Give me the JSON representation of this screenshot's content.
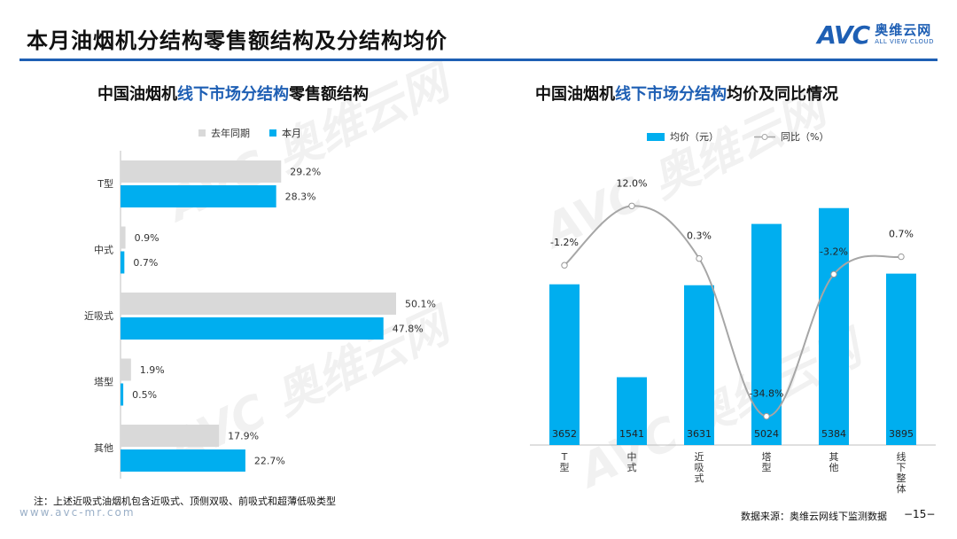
{
  "header": {
    "title": "本月油烟机分结构零售额结构及分结构均价",
    "logo_mark": "AVC",
    "logo_cn": "奥维云网",
    "logo_en": "ALL VIEW CLOUD"
  },
  "left_panel": {
    "title_prefix": "中国油烟机",
    "title_highlight": "线下市场分结构",
    "title_suffix": "零售额结构",
    "legend": [
      {
        "label": "去年同期",
        "color": "#d9d9d9"
      },
      {
        "label": "本月",
        "color": "#00aeef"
      }
    ]
  },
  "right_panel": {
    "title_prefix": "中国油烟机",
    "title_highlight": "线下市场分结构",
    "title_suffix": "均价及同比情况",
    "legend": [
      {
        "label": "均价（元）",
        "color": "#00aeef"
      },
      {
        "label": "同比（%）",
        "color": "#a6a6a6"
      }
    ]
  },
  "chart_data": [
    {
      "type": "bar",
      "orientation": "horizontal",
      "categories": [
        "T型",
        "中式",
        "近吸式",
        "塔型",
        "其他"
      ],
      "series": [
        {
          "name": "去年同期",
          "color": "#d9d9d9",
          "values": [
            29.2,
            0.9,
            50.1,
            1.9,
            17.9
          ],
          "labels": [
            "29.2%",
            "0.9%",
            "50.1%",
            "1.9%",
            "17.9%"
          ]
        },
        {
          "name": "本月",
          "color": "#00aeef",
          "values": [
            28.3,
            0.7,
            47.8,
            0.5,
            22.7
          ],
          "labels": [
            "28.3%",
            "0.7%",
            "47.8%",
            "0.5%",
            "22.7%"
          ]
        }
      ],
      "xlim": [
        0,
        55
      ]
    },
    {
      "type": "bar+line",
      "categories": [
        "T型",
        "中式",
        "近吸式",
        "塔型",
        "其他",
        "线下整体"
      ],
      "series": [
        {
          "name": "均价（元）",
          "color": "#00aeef",
          "values": [
            3652,
            1541,
            3631,
            5024,
            5384,
            3895
          ],
          "labels": [
            "3652",
            "1541",
            "3631",
            "5024",
            "5384",
            "3895"
          ]
        },
        {
          "name": "同比（%）",
          "color": "#a6a6a6",
          "values": [
            -1.2,
            12.0,
            0.3,
            -34.8,
            -3.2,
            0.7
          ],
          "labels": [
            "-1.2%",
            "12.0%",
            "0.3%",
            "-34.8%",
            "-3.2%",
            "0.7%"
          ]
        }
      ],
      "bar_ylim": [
        0,
        5600
      ],
      "line_ylim": [
        -40,
        16
      ]
    }
  ],
  "footer": {
    "note": "注：上述近吸式油烟机包含近吸式、顶侧双吸、前吸式和超薄低吸类型",
    "url": "www.avc-mr.com",
    "source": "数据来源：奥维云网线下监测数据",
    "page": "−15−"
  }
}
